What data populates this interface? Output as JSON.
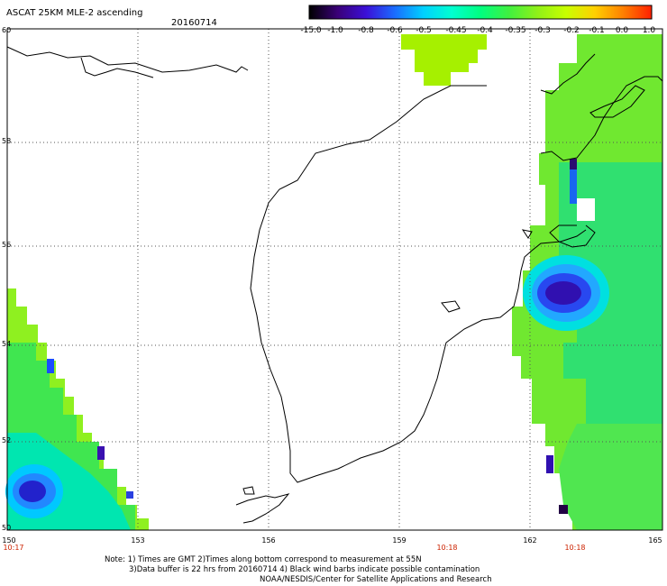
{
  "header": {
    "title": "ASCAT 25KM MLE-2 ascending",
    "date": "20160714"
  },
  "colorbar": {
    "labels": [
      "-15.0",
      "-1.0",
      "-0.8",
      "-0.6",
      "-0.5",
      "-0.45",
      "-0.4",
      "-0.35",
      "-0.3",
      "-0.2",
      "-0.1",
      "0.0",
      "1.0"
    ],
    "colors": [
      "#000000",
      "#3a0078",
      "#3b10d8",
      "#1a6cff",
      "#00d0ff",
      "#00ffd0",
      "#00ff80",
      "#40f040",
      "#90f018",
      "#c8ff00",
      "#ffd000",
      "#ff8000",
      "#ff2000"
    ]
  },
  "axes": {
    "lat_labels": [
      "60",
      "58",
      "56",
      "54",
      "52",
      "50"
    ],
    "lon_labels": [
      "150",
      "153",
      "156",
      "159",
      "162",
      "165"
    ],
    "time_labels": [
      "10:17",
      "10:18",
      "10:18"
    ]
  },
  "notes": {
    "line1": "Note: 1) Times are GMT 2)Times along bottom correspond to measurement at 55N",
    "line2": "3)Data buffer is 22 hrs from 20160714 4) Black wind barbs indicate possible contamination",
    "line3": "NOAA/NESDIS/Center for Satellite Applications and Research"
  }
}
